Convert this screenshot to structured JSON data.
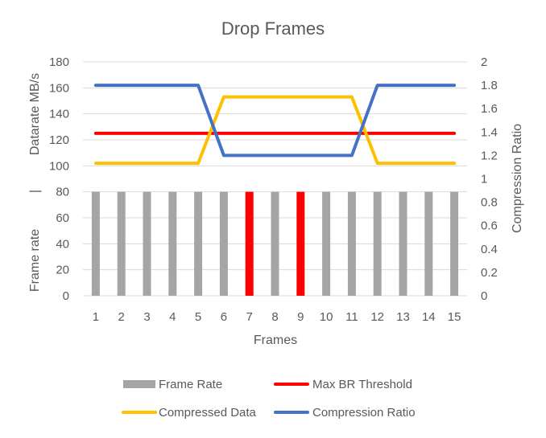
{
  "chart_data": {
    "type": "bar",
    "title": "Drop Frames",
    "xlabel": "Frames",
    "ylabel_left_top": "Datarate MB/s",
    "ylabel_left_sep": "|",
    "ylabel_left_bottom": "Frame rate",
    "ylabel_right": "Compression Ratio",
    "categories": [
      "1",
      "2",
      "3",
      "4",
      "5",
      "6",
      "7",
      "8",
      "9",
      "10",
      "11",
      "12",
      "13",
      "14",
      "15"
    ],
    "y_left_ticks": [
      "0",
      "20",
      "40",
      "60",
      "80",
      "100",
      "120",
      "140",
      "160",
      "180"
    ],
    "y_right_ticks": [
      "0",
      "0.2",
      "0.4",
      "0.6",
      "0.8",
      "1",
      "1.2",
      "1.4",
      "1.6",
      "1.8",
      "2"
    ],
    "ylim_left": [
      0,
      180
    ],
    "ylim_right": [
      0,
      2
    ],
    "grid": true,
    "legend_position": "bottom",
    "series": [
      {
        "name": "Frame Rate",
        "kind": "bar",
        "axis": "left",
        "color": "#a5a5a5",
        "highlight_color": "#ff0000",
        "values": [
          80,
          80,
          80,
          80,
          80,
          80,
          80,
          80,
          80,
          80,
          80,
          80,
          80,
          80,
          80
        ],
        "dropped_frames": [
          "7",
          "9"
        ]
      },
      {
        "name": "Max BR Threshold",
        "kind": "line",
        "axis": "left",
        "color": "#ff0000",
        "values": [
          125,
          125,
          125,
          125,
          125,
          125,
          125,
          125,
          125,
          125,
          125,
          125,
          125,
          125,
          125
        ]
      },
      {
        "name": "Compressed Data",
        "kind": "line",
        "axis": "left",
        "color": "#ffc000",
        "values": [
          102,
          102,
          102,
          102,
          102,
          153,
          153,
          153,
          153,
          153,
          153,
          102,
          102,
          102,
          102
        ]
      },
      {
        "name": "Compression Ratio",
        "kind": "line",
        "axis": "right",
        "color": "#4472c4",
        "values": [
          1.8,
          1.8,
          1.8,
          1.8,
          1.8,
          1.2,
          1.2,
          1.2,
          1.2,
          1.2,
          1.2,
          1.8,
          1.8,
          1.8,
          1.8
        ]
      }
    ]
  }
}
